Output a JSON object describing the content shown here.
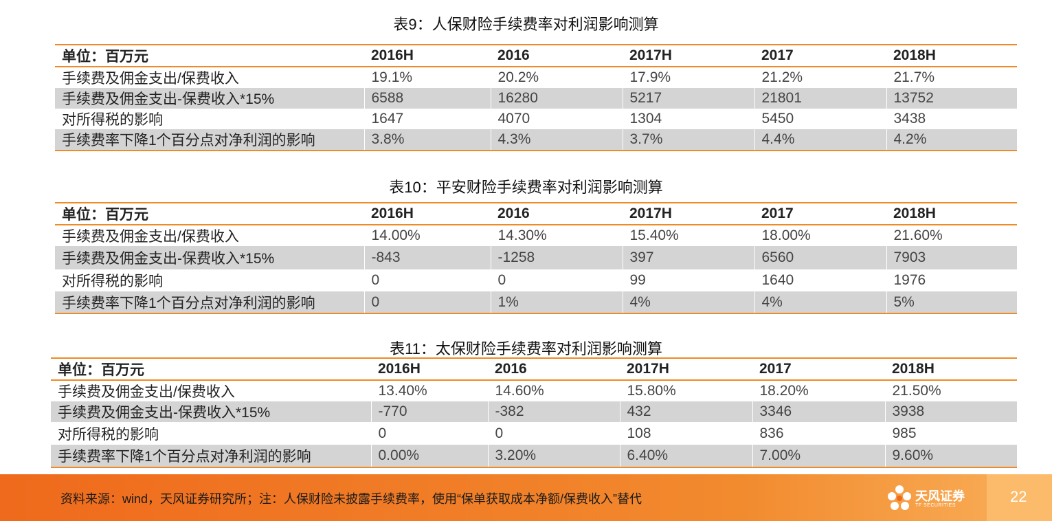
{
  "tables": [
    {
      "title": "表9：人保财险手续费率对利润影响测算",
      "header": [
        "单位：百万元",
        "2016H",
        "2016",
        "2017H",
        "2017",
        "2018H"
      ],
      "rows": [
        [
          "手续费及佣金支出/保费收入",
          "19.1%",
          "20.2%",
          "17.9%",
          "21.2%",
          "21.7%"
        ],
        [
          "手续费及佣金支出-保费收入*15%",
          "6588",
          "16280",
          "5217",
          "21801",
          "13752"
        ],
        [
          "对所得税的影响",
          "1647",
          "4070",
          "1304",
          "5450",
          "3438"
        ],
        [
          "手续费率下降1个百分点对净利润的影响",
          "3.8%",
          "4.3%",
          "3.7%",
          "4.4%",
          "4.2%"
        ]
      ]
    },
    {
      "title": "表10：平安财险手续费率对利润影响测算",
      "header": [
        "单位：百万元",
        "2016H",
        "2016",
        "2017H",
        "2017",
        "2018H"
      ],
      "rows": [
        [
          "手续费及佣金支出/保费收入",
          "14.00%",
          "14.30%",
          "15.40%",
          "18.00%",
          "21.60%"
        ],
        [
          "手续费及佣金支出-保费收入*15%",
          "-843",
          "-1258",
          "397",
          "6560",
          "7903"
        ],
        [
          "对所得税的影响",
          "0",
          "0",
          "99",
          "1640",
          "1976"
        ],
        [
          "手续费率下降1个百分点对净利润的影响",
          "0",
          "1%",
          "4%",
          "4%",
          "5%"
        ]
      ]
    },
    {
      "title": "表11：太保财险手续费率对利润影响测算",
      "header": [
        "单位：百万元",
        "2016H",
        "2016",
        "2017H",
        "2017",
        "2018H"
      ],
      "rows": [
        [
          "手续费及佣金支出/保费收入",
          "13.40%",
          "14.60%",
          "15.80%",
          "18.20%",
          "21.50%"
        ],
        [
          "手续费及佣金支出-保费收入*15%",
          "-770",
          "-382",
          "432",
          "3346",
          "3938"
        ],
        [
          "对所得税的影响",
          "0",
          "0",
          "108",
          "836",
          "985"
        ],
        [
          "手续费率下降1个百分点对净利润的影响",
          "0.00%",
          "3.20%",
          "6.40%",
          "7.00%",
          "9.60%"
        ]
      ]
    }
  ],
  "footer": {
    "source": "资料来源：wind，天风证券研究所；注：人保财险未披露手续费率，使用“保单获取成本净额/保费收入”替代",
    "logo_cn": "天风证券",
    "logo_en": "TF SECURITIES",
    "page_number": "22"
  },
  "colors": {
    "accent_line": "#f08a24",
    "row_shade": "#d4d4d4",
    "footer_bar": "#ef6a1c"
  }
}
